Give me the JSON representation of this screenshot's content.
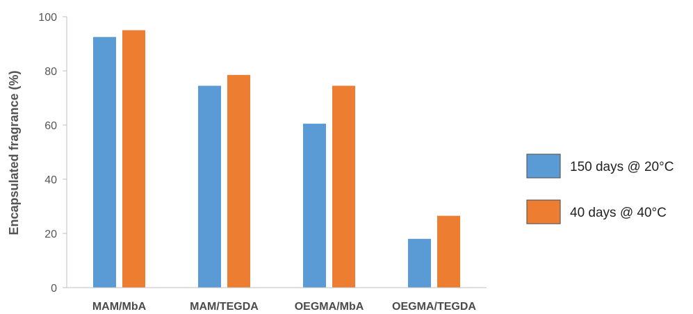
{
  "chart_data": {
    "type": "bar",
    "title": "",
    "xlabel": "",
    "ylabel": "Encapsulated fragrance (%)",
    "ylim": [
      0,
      100
    ],
    "yticks": [
      0,
      20,
      40,
      60,
      80,
      100
    ],
    "grid": false,
    "legend_position": "right",
    "categories": [
      "MAM/MbA",
      "MAM/TEGDA",
      "OEGMA/MbA",
      "OEGMA/TEGDA"
    ],
    "series": [
      {
        "name": "150 days @ 20°C",
        "color": "#5b9bd5",
        "values": [
          92.5,
          74.5,
          60.5,
          18
        ]
      },
      {
        "name": "40 days @ 40°C",
        "color": "#ed7d31",
        "values": [
          95,
          78.5,
          74.5,
          26.5
        ]
      }
    ]
  }
}
